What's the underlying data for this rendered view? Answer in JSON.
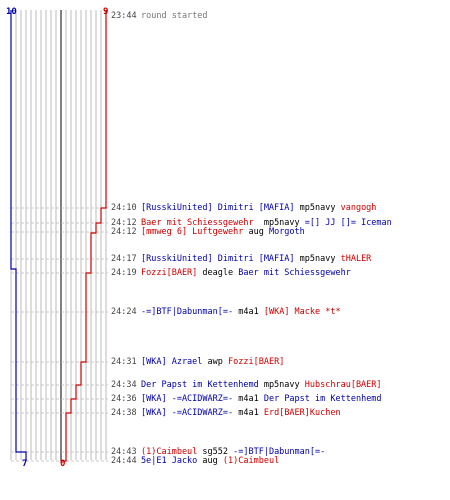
{
  "colors": {
    "blue": "#0000aa",
    "red": "#cc0000",
    "gray_text": "#777777",
    "grid": "#aaaaaa",
    "center": "#555555",
    "dashed": "#bbbbbb"
  },
  "chart_data": {
    "type": "line",
    "series": [
      {
        "team": "blue",
        "start": 10,
        "end": 7,
        "x": [
          "23:44",
          "24:17",
          "24:43"
        ],
        "values": [
          10,
          9,
          8
        ]
      },
      {
        "team": "red",
        "start": 9,
        "end": 0,
        "x": [
          "24:10",
          "24:12",
          "24:24",
          "24:31",
          "24:34",
          "24:36",
          "24:38",
          "24:44"
        ],
        "values": [
          8,
          7,
          6,
          5,
          4,
          3,
          2,
          1
        ]
      }
    ],
    "ylim": [
      0,
      10
    ]
  },
  "labels": {
    "top_left": "10",
    "top_right": "9",
    "bottom_left": "7",
    "bottom_right": "0"
  },
  "events": [
    {
      "time": "23:44",
      "parts": [
        {
          "text": "round started",
          "color": "gray"
        }
      ]
    },
    {
      "time": "24:10",
      "parts": [
        {
          "text": "[RusskiUnited] Dimitri [MAFIA]",
          "color": "blue"
        },
        {
          "text": " mp5navy ",
          "color": "black"
        },
        {
          "text": "vangogh",
          "color": "red"
        }
      ]
    },
    {
      "time": "24:12",
      "parts": [
        {
          "text": "Baer mit Schiessgewehr",
          "color": "red"
        },
        {
          "text": "  mp5navy ",
          "color": "black"
        },
        {
          "text": "=[] JJ []= Iceman",
          "color": "blue"
        }
      ]
    },
    {
      "time": "24:12",
      "parts": [
        {
          "text": "[mmweg 6] Luftgewehr",
          "color": "red"
        },
        {
          "text": " aug ",
          "color": "black"
        },
        {
          "text": "Morgoth",
          "color": "blue"
        }
      ]
    },
    {
      "time": "24:17",
      "parts": [
        {
          "text": "[RusskiUnited] Dimitri [MAFIA]",
          "color": "blue"
        },
        {
          "text": " mp5navy ",
          "color": "black"
        },
        {
          "text": "tHALER",
          "color": "red"
        }
      ]
    },
    {
      "time": "24:19",
      "parts": [
        {
          "text": "Fozzi[BAER]",
          "color": "red"
        },
        {
          "text": " deagle ",
          "color": "black"
        },
        {
          "text": "Baer mit Schiessgewehr",
          "color": "blue"
        }
      ]
    },
    {
      "time": "24:24",
      "parts": [
        {
          "text": "-=]BTF|Dabunman[=-",
          "color": "blue"
        },
        {
          "text": " m4a1 ",
          "color": "black"
        },
        {
          "text": "[WKA] Macke *t*",
          "color": "red"
        }
      ]
    },
    {
      "time": "24:31",
      "parts": [
        {
          "text": "[WKA] Azrael",
          "color": "blue"
        },
        {
          "text": " awp ",
          "color": "black"
        },
        {
          "text": "Fozzi[BAER]",
          "color": "red"
        }
      ]
    },
    {
      "time": "24:34",
      "parts": [
        {
          "text": "Der Papst im Kettenhemd",
          "color": "blue"
        },
        {
          "text": " mp5navy ",
          "color": "black"
        },
        {
          "text": "Hubschrau[BAER]",
          "color": "red"
        }
      ]
    },
    {
      "time": "24:36",
      "parts": [
        {
          "text": "[WKA] -=ACIDWARZ=-",
          "color": "blue"
        },
        {
          "text": " m4a1 ",
          "color": "black"
        },
        {
          "text": "Der Papst im Kettenhemd",
          "color": "blue"
        }
      ]
    },
    {
      "time": "24:38",
      "parts": [
        {
          "text": "[WKA] -=ACIDWARZ=-",
          "color": "blue"
        },
        {
          "text": " m4a1 ",
          "color": "black"
        },
        {
          "text": "Erd[BAER]Kuchen",
          "color": "red"
        }
      ]
    },
    {
      "time": "24:43",
      "parts": [
        {
          "text": "(1)Caimbeul",
          "color": "red"
        },
        {
          "text": " sg552 ",
          "color": "black"
        },
        {
          "text": "-=]BTF|Dabunman[=-",
          "color": "blue"
        }
      ]
    },
    {
      "time": "24:44",
      "parts": [
        {
          "text": "5e|E1 Jacko",
          "color": "blue"
        },
        {
          "text": " aug ",
          "color": "black"
        },
        {
          "text": "(1)Caimbeul",
          "color": "red"
        }
      ]
    }
  ]
}
